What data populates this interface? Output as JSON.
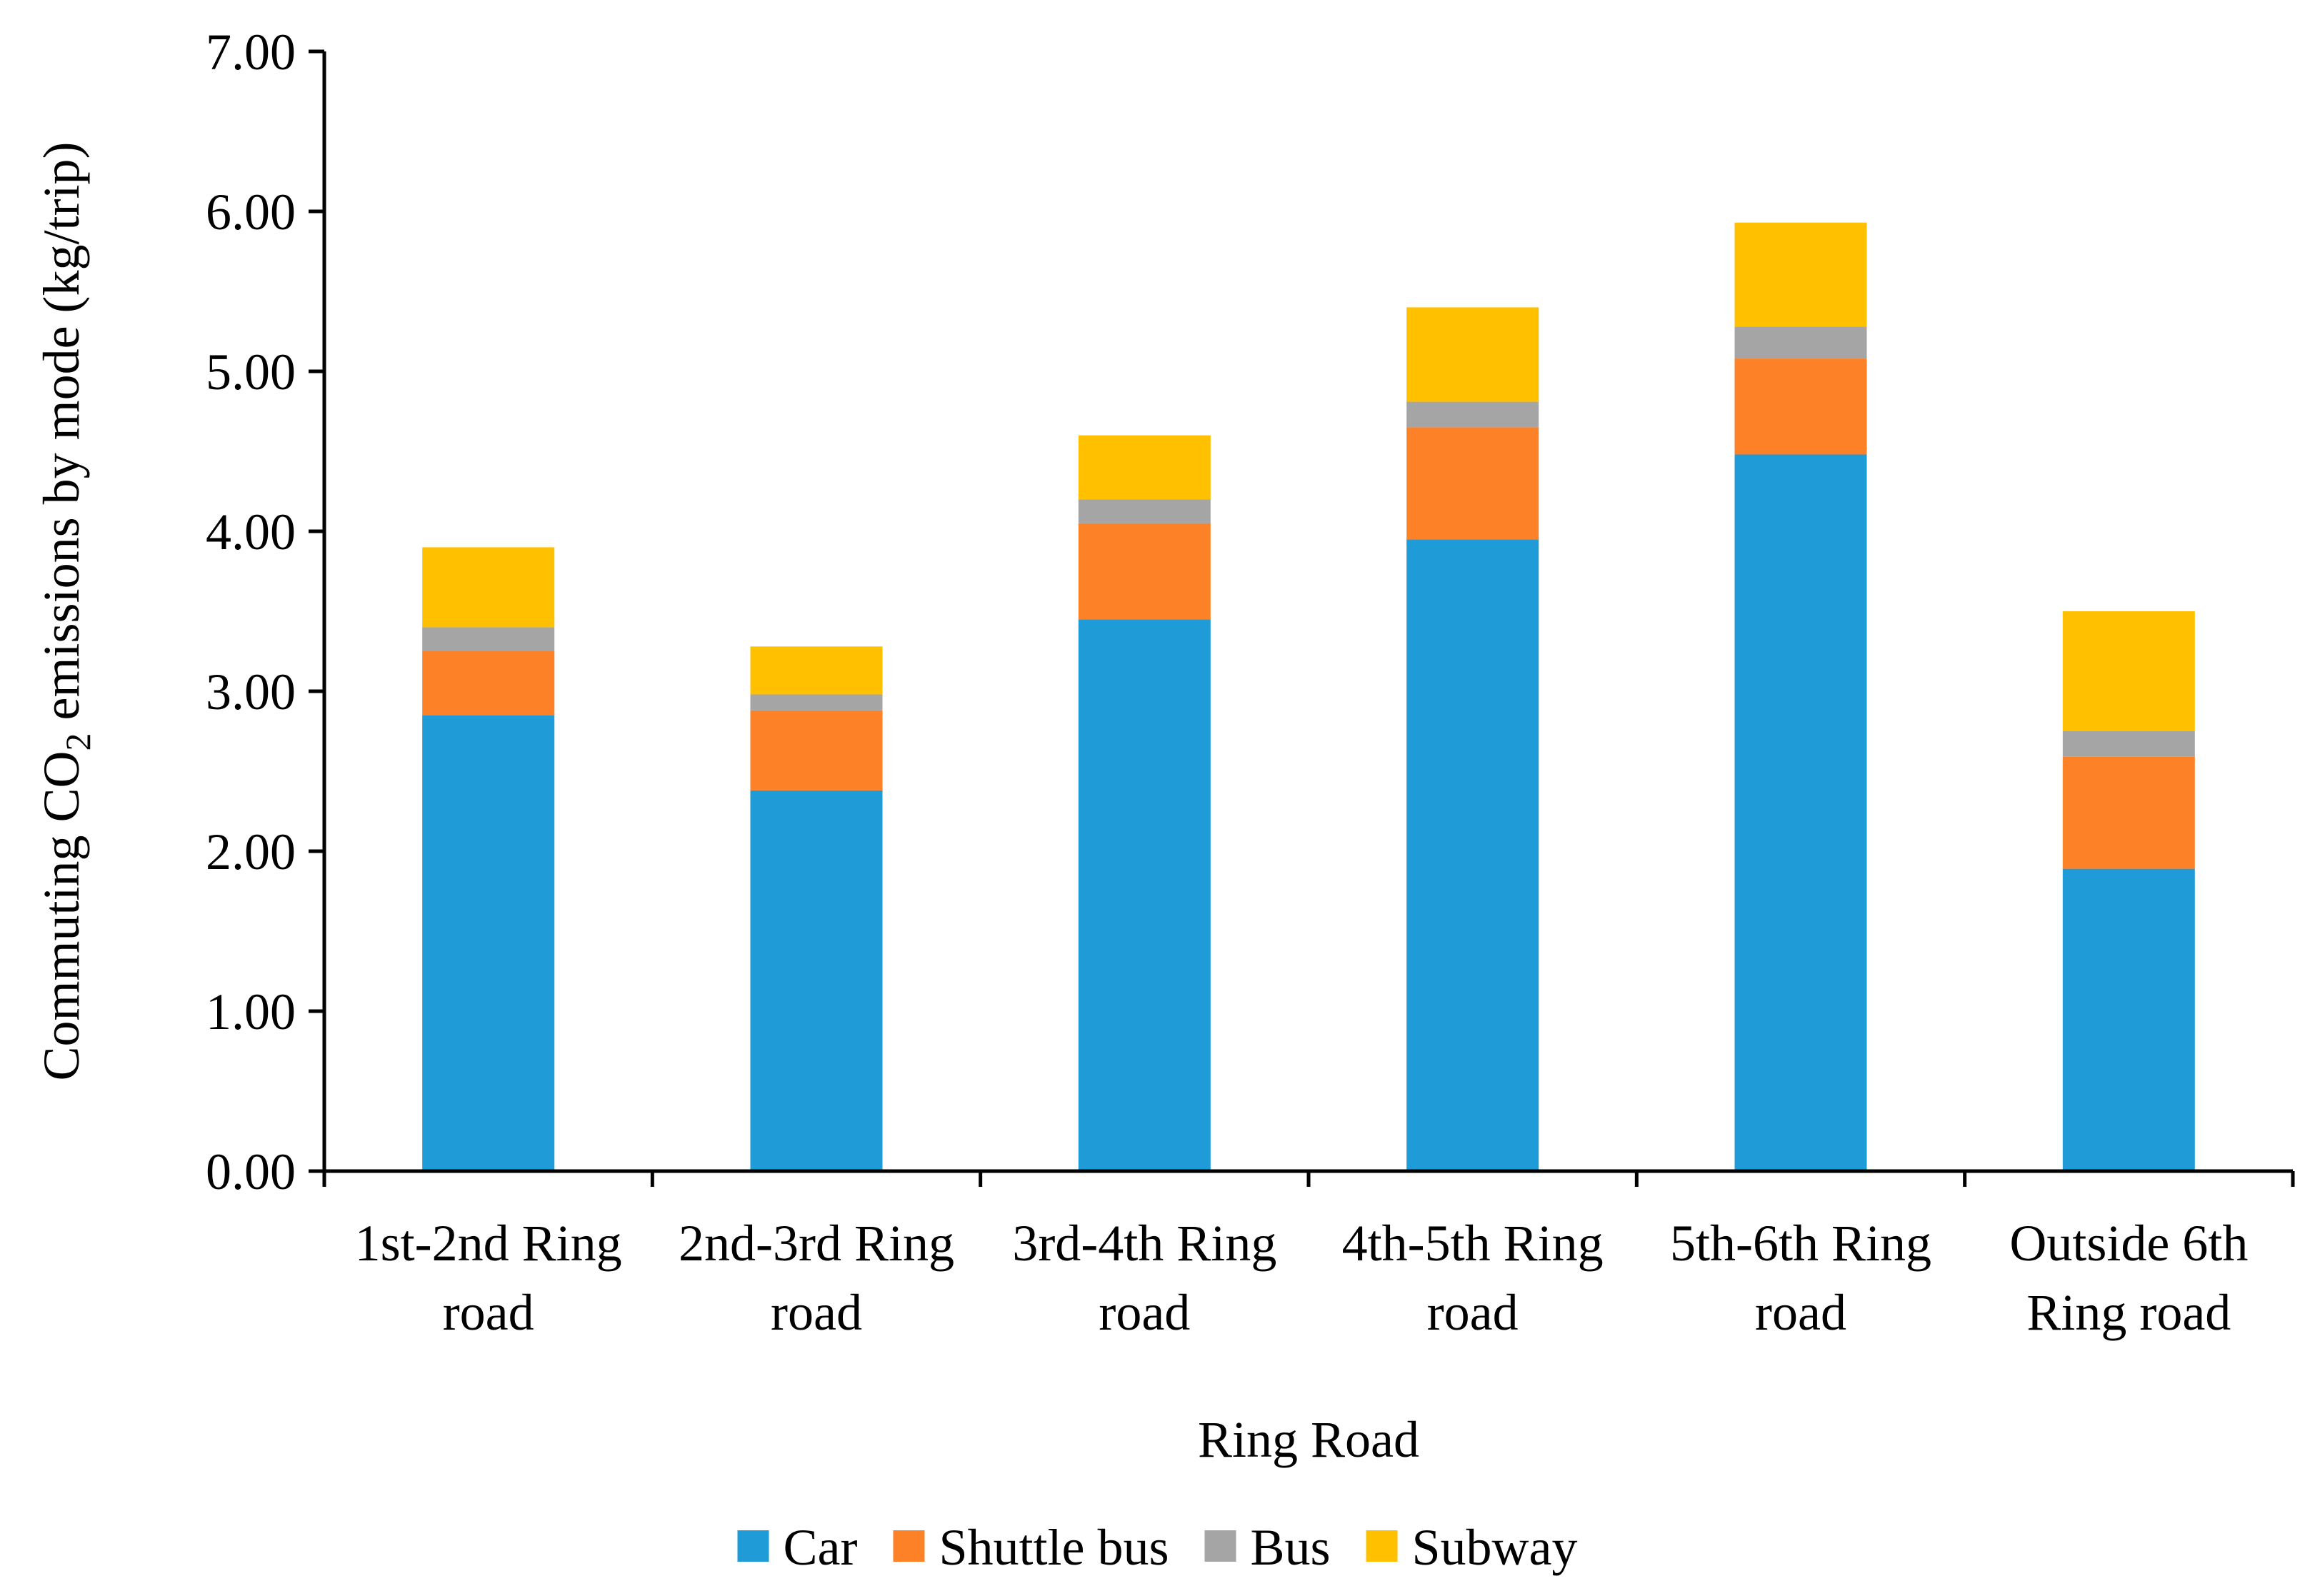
{
  "chart_data": {
    "type": "bar",
    "stacked": true,
    "xlabel": "Ring Road",
    "ylabel_parts": [
      "Commuting CO",
      "2",
      " emissions by mode (kg/trip)"
    ],
    "ylim": [
      0,
      7
    ],
    "yticks": [
      "0.00",
      "1.00",
      "2.00",
      "3.00",
      "4.00",
      "5.00",
      "6.00",
      "7.00"
    ],
    "ytick_values": [
      0,
      1,
      2,
      3,
      4,
      5,
      6,
      7
    ],
    "categories": [
      [
        "1st-2nd Ring",
        "road"
      ],
      [
        "2nd-3rd Ring",
        "road"
      ],
      [
        "3rd-4th Ring",
        "road"
      ],
      [
        "4th-5th Ring",
        "road"
      ],
      [
        "5th-6th Ring",
        "road"
      ],
      [
        "Outside 6th",
        "Ring road"
      ]
    ],
    "series": [
      {
        "name": "Car",
        "color": "#1f9bd7",
        "values": [
          2.85,
          2.38,
          3.45,
          3.95,
          4.48,
          1.89
        ]
      },
      {
        "name": "Shuttle bus",
        "color": "#fd8126",
        "values": [
          0.4,
          0.5,
          0.6,
          0.7,
          0.6,
          0.7
        ]
      },
      {
        "name": "Bus",
        "color": "#a5a5a5",
        "values": [
          0.15,
          0.1,
          0.15,
          0.16,
          0.2,
          0.16
        ]
      },
      {
        "name": "Subway",
        "color": "#ffc000",
        "values": [
          0.5,
          0.3,
          0.4,
          0.59,
          0.65,
          0.75
        ]
      }
    ],
    "legend_position": "bottom",
    "grid": false
  }
}
